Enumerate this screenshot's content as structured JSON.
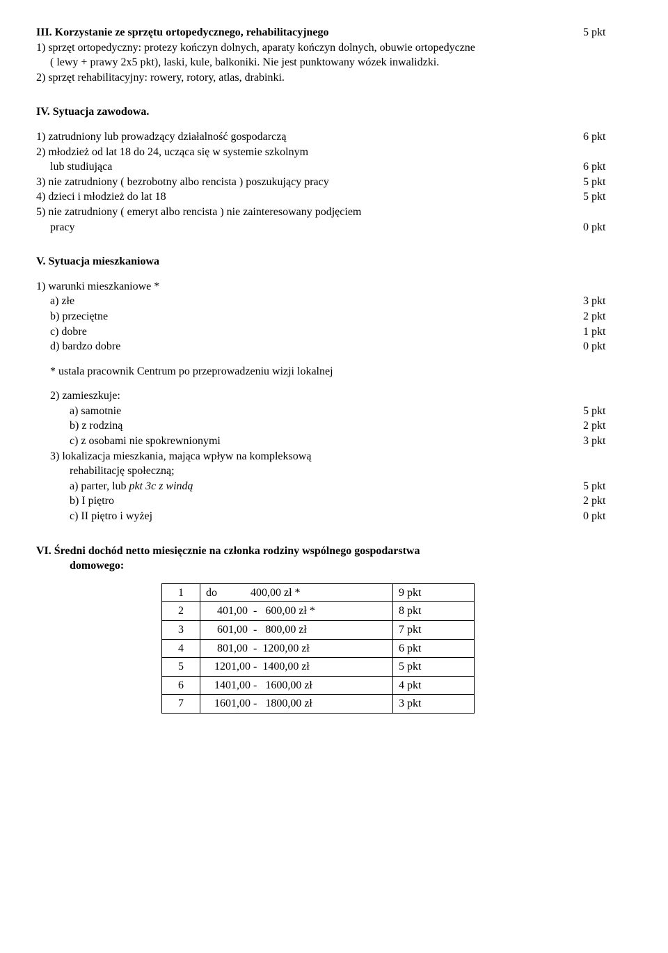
{
  "s3": {
    "title_left": "III. Korzystanie ze sprzętu ortopedycznego, rehabilitacyjnego",
    "title_pts": "5 pkt",
    "line1": "1) sprzęt ortopedyczny: protezy kończyn dolnych, aparaty kończyn dolnych, obuwie ortopedyczne",
    "line1b": "( lewy + prawy 2x5 pkt), laski, kule, balkoniki. Nie jest punktowany wózek inwalidzki.",
    "line2": "2) sprzęt rehabilitacyjny: rowery, rotory, atlas, drabinki."
  },
  "s4": {
    "heading": "IV. Sytuacja zawodowa.",
    "i1_label": "1) zatrudniony lub prowadzący działalność gospodarczą",
    "i1_pts": "6 pkt",
    "i2a": "2) młodzież od lat 18 do 24, ucząca się w systemie szkolnym",
    "i2b_label": "lub studiująca",
    "i2b_pts": "6 pkt",
    "i3_label": "3) nie zatrudniony ( bezrobotny albo rencista ) poszukujący pracy",
    "i3_pts": "5 pkt",
    "i4_label": "4) dzieci i młodzież do lat 18",
    "i4_pts": "5 pkt",
    "i5a": "5) nie zatrudniony ( emeryt albo rencista ) nie zainteresowany podjęciem",
    "i5b_label": "pracy",
    "i5b_pts": "0 pkt"
  },
  "s5": {
    "heading": "V. Sytuacja mieszkaniowa",
    "w_title": "1) warunki mieszkaniowe *",
    "w_a_label": "a) złe",
    "w_a_pts": "3 pkt",
    "w_b_label": "b) przeciętne",
    "w_b_pts": "2 pkt",
    "w_c_label": "c) dobre",
    "w_c_pts": "1 pkt",
    "w_d_label": "d) bardzo dobre",
    "w_d_pts": "0 pkt",
    "note": "* ustala  pracownik Centrum po przeprowadzeniu wizji lokalnej",
    "z_title": "2) zamieszkuje:",
    "z_a_label": "a) samotnie",
    "z_a_pts": "5 pkt",
    "z_b_label": "b) z rodziną",
    "z_b_pts": "2 pkt",
    "z_c_label": "c) z osobami nie spokrewnionymi",
    "z_c_pts": "3 pkt",
    "l_title_a": "3) lokalizacja mieszkania, mająca wpływ na kompleksową",
    "l_title_b": "rehabilitację społeczną;",
    "l_a_plain": "a) parter,  lub ",
    "l_a_italic": "pkt 3c z windą",
    "l_a_pts": "5 pkt",
    "l_b_label": "b)  I piętro",
    "l_b_pts": "2 pkt",
    "l_c_label": "c)  II piętro i wyżej",
    "l_c_pts": "0 pkt"
  },
  "s6": {
    "heading_a": "VI. Średni dochód netto miesięcznie na członka rodziny wspólnego gospodarstwa",
    "heading_b": "domowego:",
    "rows": [
      {
        "n": "1",
        "range": "do            400,00 zł *",
        "pts": "9 pkt"
      },
      {
        "n": "2",
        "range": "    401,00  -   600,00 zł *",
        "pts": "8 pkt"
      },
      {
        "n": "3",
        "range": "    601,00  -   800,00 zł",
        "pts": "7 pkt"
      },
      {
        "n": "4",
        "range": "    801,00  -  1200,00 zł",
        "pts": "6 pkt"
      },
      {
        "n": "5",
        "range": "   1201,00 -  1400,00 zł",
        "pts": "5 pkt"
      },
      {
        "n": "6",
        "range": "   1401,00 -   1600,00 zł",
        "pts": "4 pkt"
      },
      {
        "n": "7",
        "range": "   1601,00 -   1800,00 zł",
        "pts": "3 pkt"
      }
    ]
  }
}
